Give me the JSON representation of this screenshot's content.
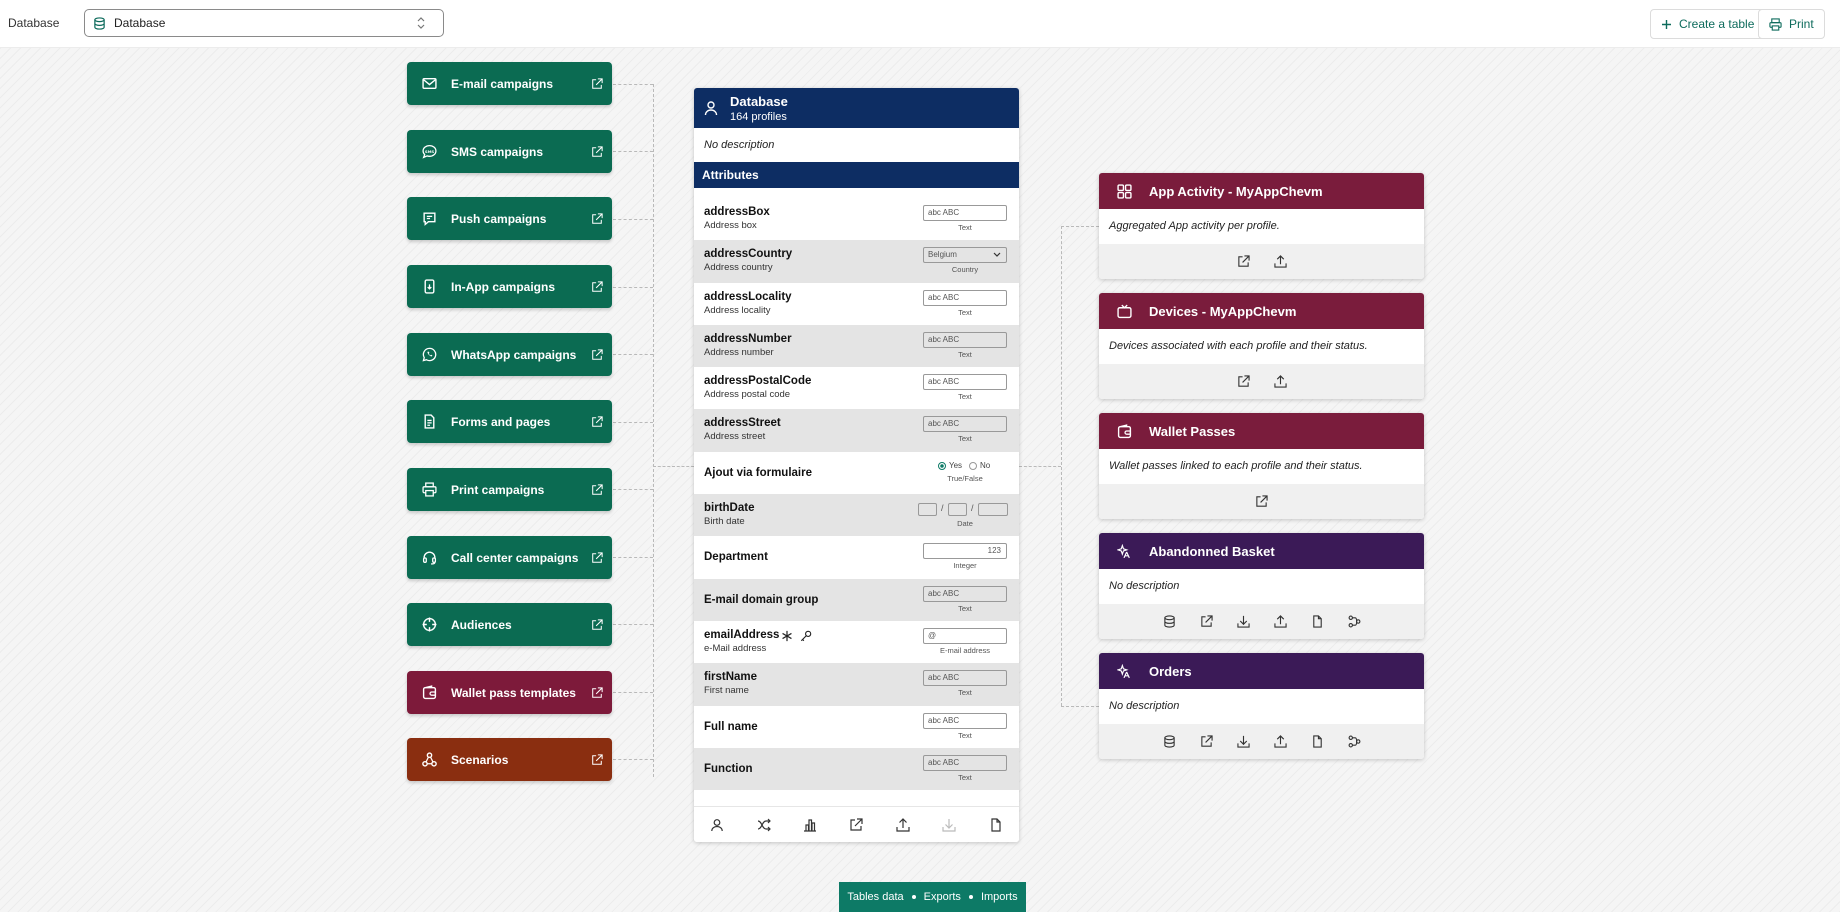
{
  "topbar": {
    "label": "Database",
    "select_value": "Database",
    "create_table": "Create a table",
    "print": "Print"
  },
  "nav": [
    {
      "label": "E-mail campaigns",
      "icon": "mail-icon",
      "color": "#0b6b52"
    },
    {
      "label": "SMS campaigns",
      "icon": "sms-icon",
      "color": "#0b6b52"
    },
    {
      "label": "Push campaigns",
      "icon": "push-icon",
      "color": "#0b6b52"
    },
    {
      "label": "In-App campaigns",
      "icon": "in-app-icon",
      "color": "#0b6b52"
    },
    {
      "label": "WhatsApp campaigns",
      "icon": "whatsapp-icon",
      "color": "#0b6b52"
    },
    {
      "label": "Forms and pages",
      "icon": "forms-icon",
      "color": "#0b6b52"
    },
    {
      "label": "Print campaigns",
      "icon": "printer-icon",
      "color": "#0b6b52"
    },
    {
      "label": "Call center campaigns",
      "icon": "headset-icon",
      "color": "#0b6b52"
    },
    {
      "label": "Audiences",
      "icon": "target-icon",
      "color": "#0b6b52"
    },
    {
      "label": "Wallet pass templates",
      "icon": "wallet-icon",
      "color": "#7d1a3a"
    },
    {
      "label": "Scenarios",
      "icon": "scenario-icon",
      "color": "#8a2e10"
    }
  ],
  "database": {
    "title": "Database",
    "profiles": "164 profiles",
    "description": "No description",
    "attributes_title": "Attributes",
    "attributes": [
      {
        "name": "addressBox",
        "label": "Address box",
        "control": "abc ABC",
        "type": "Text"
      },
      {
        "name": "addressCountry",
        "label": "Address country",
        "control": "Belgium",
        "type": "Country"
      },
      {
        "name": "addressLocality",
        "label": "Address locality",
        "control": "abc ABC",
        "type": "Text"
      },
      {
        "name": "addressNumber",
        "label": "Address number",
        "control": "abc ABC",
        "type": "Text"
      },
      {
        "name": "addressPostalCode",
        "label": "Address postal code",
        "control": "abc ABC",
        "type": "Text"
      },
      {
        "name": "addressStreet",
        "label": "Address street",
        "control": "abc ABC",
        "type": "Text"
      },
      {
        "name": "Ajout via formulaire",
        "label": "",
        "yes": "Yes",
        "no": "No",
        "type": "True/False"
      },
      {
        "name": "birthDate",
        "label": "Birth date",
        "type": "Date"
      },
      {
        "name": "Department",
        "label": "",
        "control": "123",
        "type": "Integer"
      },
      {
        "name": "E-mail domain group",
        "label": "",
        "control": "abc ABC",
        "type": "Text"
      },
      {
        "name": "emailAddress",
        "label": "e-Mail address",
        "control": "@",
        "type": "E-mail address"
      },
      {
        "name": "firstName",
        "label": "First name",
        "control": "abc ABC",
        "type": "Text"
      },
      {
        "name": "Full name",
        "label": "",
        "control": "abc ABC",
        "type": "Text"
      },
      {
        "name": "Function",
        "label": "",
        "control": "abc ABC",
        "type": "Text"
      }
    ]
  },
  "tables": [
    {
      "title": "App Activity - MyAppChevm",
      "description": "Aggregated App activity per profile.",
      "color": "#7a1c3c",
      "icon": "grid-icon",
      "actions": [
        "external-link-icon",
        "upload-icon"
      ]
    },
    {
      "title": "Devices - MyAppChevm",
      "description": "Devices associated with each profile and their status.",
      "color": "#7a1c3c",
      "icon": "tv-icon",
      "actions": [
        "external-link-icon",
        "upload-icon"
      ]
    },
    {
      "title": "Wallet Passes",
      "description": "Wallet passes linked to each profile and their status.",
      "color": "#7a1c3c",
      "icon": "wallet-icon",
      "actions": [
        "external-link-icon"
      ]
    },
    {
      "title": "Abandonned Basket",
      "description": "No description",
      "color": "#3b1a57",
      "icon": "sparkle-icon",
      "actions": [
        "database-icon",
        "external-link-icon",
        "download-icon",
        "upload-icon",
        "file-icon",
        "flow-icon"
      ]
    },
    {
      "title": "Orders",
      "description": "No description",
      "color": "#3b1a57",
      "icon": "sparkle-icon",
      "actions": [
        "database-icon",
        "external-link-icon",
        "download-icon",
        "upload-icon",
        "file-icon",
        "flow-icon"
      ]
    }
  ],
  "bottom_tabs": [
    "Tables data",
    "Exports",
    "Imports"
  ]
}
